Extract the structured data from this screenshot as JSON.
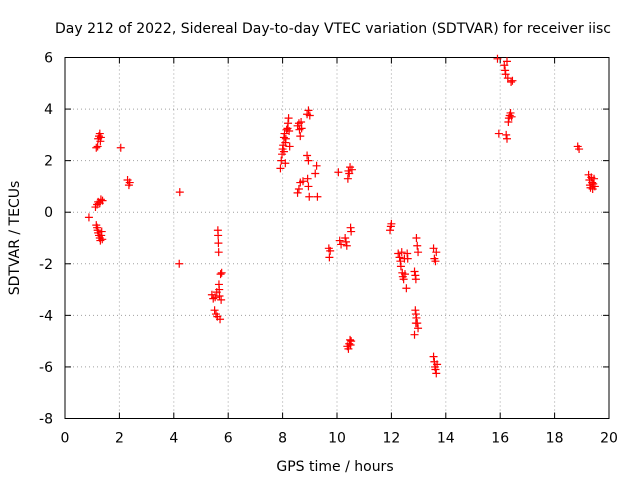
{
  "chart_data": {
    "type": "scatter",
    "title": "Day 212 of 2022, Sidereal Day-to-day VTEC variation (SDTVAR) for receiver iisc",
    "xlabel": "GPS time / hours",
    "ylabel": "SDTVAR / TECUs",
    "xlim": [
      0,
      20
    ],
    "ylim": [
      -8,
      6
    ],
    "x_ticks": [
      0,
      2,
      4,
      6,
      8,
      10,
      12,
      14,
      16,
      18,
      20
    ],
    "y_ticks": [
      -8,
      -6,
      -4,
      -2,
      0,
      2,
      4,
      6
    ],
    "x_tick_labels": [
      "0",
      "2",
      "4",
      "6",
      "8",
      "10",
      "12",
      "14",
      "16",
      "18",
      "20"
    ],
    "y_tick_labels": [
      "-8",
      "-6",
      "-4",
      "-2",
      "0",
      "2",
      "4",
      "6"
    ],
    "grid": true,
    "marker": "+",
    "color": "#ff0000",
    "series": [
      {
        "name": "SDTVAR",
        "points": [
          [
            0.88,
            -0.2
          ],
          [
            1.15,
            2.5
          ],
          [
            1.2,
            2.55
          ],
          [
            1.22,
            2.85
          ],
          [
            1.25,
            2.95
          ],
          [
            1.28,
            3.05
          ],
          [
            1.32,
            2.9
          ],
          [
            1.3,
            2.75
          ],
          [
            1.12,
            0.2
          ],
          [
            1.18,
            0.3
          ],
          [
            1.22,
            0.4
          ],
          [
            1.28,
            0.35
          ],
          [
            1.32,
            0.5
          ],
          [
            1.38,
            0.45
          ],
          [
            1.15,
            -0.5
          ],
          [
            1.18,
            -0.6
          ],
          [
            1.2,
            -0.7
          ],
          [
            1.22,
            -0.8
          ],
          [
            1.25,
            -0.9
          ],
          [
            1.28,
            -1.0
          ],
          [
            1.3,
            -1.1
          ],
          [
            1.33,
            -0.9
          ],
          [
            1.35,
            -0.75
          ],
          [
            1.37,
            -1.05
          ],
          [
            2.05,
            2.5
          ],
          [
            2.3,
            1.25
          ],
          [
            2.35,
            1.05
          ],
          [
            2.38,
            1.15
          ],
          [
            4.22,
            0.78
          ],
          [
            4.2,
            -2.0
          ],
          [
            5.4,
            -3.2
          ],
          [
            5.45,
            -3.35
          ],
          [
            5.5,
            -3.8
          ],
          [
            5.52,
            -3.3
          ],
          [
            5.55,
            -3.95
          ],
          [
            5.58,
            -3.1
          ],
          [
            5.6,
            -4.05
          ],
          [
            5.62,
            -0.7
          ],
          [
            5.63,
            -0.9
          ],
          [
            5.64,
            -1.2
          ],
          [
            5.65,
            -1.55
          ],
          [
            5.66,
            -2.8
          ],
          [
            5.67,
            -3.0
          ],
          [
            5.68,
            -3.25
          ],
          [
            5.7,
            -4.15
          ],
          [
            5.72,
            -2.4
          ],
          [
            5.74,
            -3.4
          ],
          [
            5.76,
            -2.35
          ],
          [
            7.92,
            1.7
          ],
          [
            7.95,
            2.0
          ],
          [
            7.98,
            2.25
          ],
          [
            8.0,
            2.45
          ],
          [
            8.02,
            2.6
          ],
          [
            8.05,
            2.9
          ],
          [
            8.07,
            3.05
          ],
          [
            8.1,
            2.7
          ],
          [
            8.12,
            2.85
          ],
          [
            8.15,
            3.2
          ],
          [
            8.18,
            3.25
          ],
          [
            8.2,
            3.45
          ],
          [
            8.22,
            3.65
          ],
          [
            8.24,
            3.15
          ],
          [
            8.26,
            2.55
          ],
          [
            8.1,
            1.9
          ],
          [
            8.05,
            2.35
          ],
          [
            8.55,
            3.35
          ],
          [
            8.6,
            3.45
          ],
          [
            8.62,
            3.2
          ],
          [
            8.65,
            2.95
          ],
          [
            8.68,
            3.5
          ],
          [
            8.7,
            3.25
          ],
          [
            8.55,
            0.75
          ],
          [
            8.6,
            0.9
          ],
          [
            8.65,
            1.15
          ],
          [
            8.75,
            1.2
          ],
          [
            8.9,
            2.2
          ],
          [
            8.95,
            2.0
          ],
          [
            8.92,
            1.3
          ],
          [
            8.95,
            1.0
          ],
          [
            8.98,
            0.6
          ],
          [
            8.9,
            3.8
          ],
          [
            8.95,
            3.95
          ],
          [
            9.0,
            3.75
          ],
          [
            9.2,
            1.5
          ],
          [
            9.25,
            1.8
          ],
          [
            9.28,
            0.6
          ],
          [
            9.7,
            -1.4
          ],
          [
            9.72,
            -1.75
          ],
          [
            9.75,
            -1.5
          ],
          [
            10.05,
            1.55
          ],
          [
            10.1,
            -1.1
          ],
          [
            10.15,
            -1.25
          ],
          [
            10.3,
            -1.0
          ],
          [
            10.33,
            -1.15
          ],
          [
            10.36,
            -1.3
          ],
          [
            10.4,
            1.3
          ],
          [
            10.42,
            1.6
          ],
          [
            10.45,
            1.5
          ],
          [
            10.48,
            1.75
          ],
          [
            10.5,
            -0.6
          ],
          [
            10.52,
            -0.75
          ],
          [
            10.55,
            1.65
          ],
          [
            10.38,
            -5.2
          ],
          [
            10.42,
            -5.3
          ],
          [
            10.45,
            -5.1
          ],
          [
            10.48,
            -4.95
          ],
          [
            10.5,
            -5.15
          ],
          [
            10.52,
            -5.0
          ],
          [
            11.95,
            -0.7
          ],
          [
            11.98,
            -0.55
          ],
          [
            12.0,
            -0.45
          ],
          [
            12.25,
            -1.6
          ],
          [
            12.3,
            -1.75
          ],
          [
            12.33,
            -1.9
          ],
          [
            12.35,
            -2.1
          ],
          [
            12.38,
            -1.55
          ],
          [
            12.4,
            -2.35
          ],
          [
            12.42,
            -2.5
          ],
          [
            12.45,
            -2.6
          ],
          [
            12.48,
            -1.8
          ],
          [
            12.5,
            -2.4
          ],
          [
            12.55,
            -2.95
          ],
          [
            12.58,
            -1.6
          ],
          [
            12.6,
            -1.8
          ],
          [
            12.85,
            -2.3
          ],
          [
            12.88,
            -2.45
          ],
          [
            12.9,
            -2.6
          ],
          [
            12.92,
            -1.0
          ],
          [
            12.95,
            -1.3
          ],
          [
            12.98,
            -1.55
          ],
          [
            12.88,
            -3.8
          ],
          [
            12.9,
            -3.95
          ],
          [
            12.92,
            -4.1
          ],
          [
            12.95,
            -4.3
          ],
          [
            12.98,
            -4.5
          ],
          [
            12.85,
            -4.75
          ],
          [
            12.9,
            -4.3
          ],
          [
            13.55,
            -1.4
          ],
          [
            13.58,
            -1.8
          ],
          [
            13.62,
            -1.9
          ],
          [
            13.65,
            -1.55
          ],
          [
            13.55,
            -5.6
          ],
          [
            13.58,
            -5.8
          ],
          [
            13.6,
            -6.0
          ],
          [
            13.62,
            -6.1
          ],
          [
            13.65,
            -6.25
          ],
          [
            13.68,
            -5.9
          ],
          [
            15.9,
            5.95
          ],
          [
            15.95,
            3.05
          ],
          [
            16.15,
            5.7
          ],
          [
            16.18,
            5.5
          ],
          [
            16.2,
            5.35
          ],
          [
            16.22,
            3.0
          ],
          [
            16.25,
            2.85
          ],
          [
            16.25,
            5.85
          ],
          [
            16.28,
            5.2
          ],
          [
            16.3,
            3.5
          ],
          [
            16.32,
            3.65
          ],
          [
            16.35,
            3.75
          ],
          [
            16.38,
            3.85
          ],
          [
            16.4,
            5.05
          ],
          [
            16.42,
            3.7
          ],
          [
            16.45,
            5.1
          ],
          [
            18.85,
            2.55
          ],
          [
            18.9,
            2.45
          ],
          [
            19.25,
            1.45
          ],
          [
            19.28,
            1.25
          ],
          [
            19.3,
            1.05
          ],
          [
            19.32,
            0.95
          ],
          [
            19.35,
            1.35
          ],
          [
            19.38,
            1.15
          ],
          [
            19.4,
            0.9
          ],
          [
            19.42,
            1.1
          ],
          [
            19.45,
            1.3
          ],
          [
            19.48,
            1.0
          ]
        ]
      }
    ]
  }
}
